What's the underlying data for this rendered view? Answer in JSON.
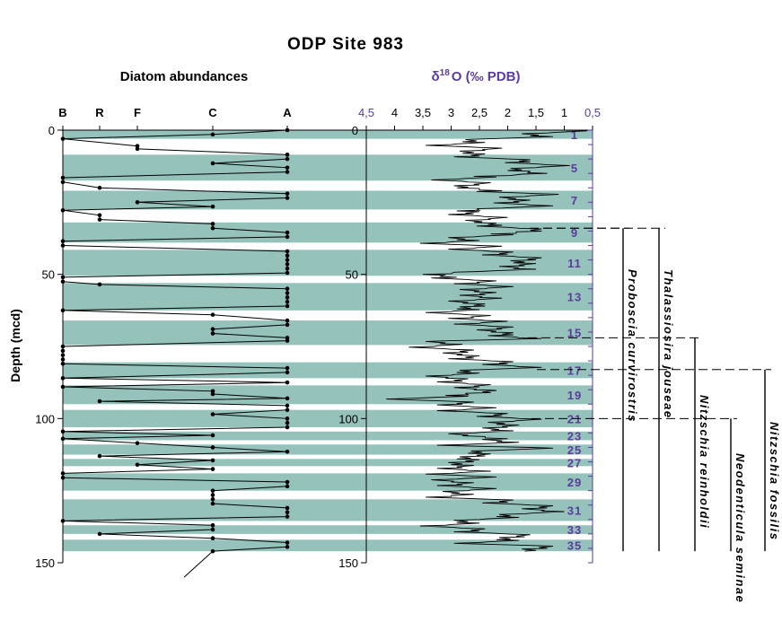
{
  "chart_data": {
    "type": "line",
    "title": "ODP Site 983",
    "ylabel": "Depth (mcd)",
    "ylim": [
      0,
      150
    ],
    "yticks": [
      0,
      50,
      100,
      150
    ],
    "colors": {
      "band": "#95c2bb",
      "purple": "#5b3b9e",
      "line": "#000000"
    },
    "panels": [
      {
        "name": "diatom",
        "subtitle": "Diatom abundances",
        "categories": [
          "B",
          "R",
          "F",
          "C",
          "A"
        ],
        "series": [
          {
            "points": [
              [
                0,
                "A"
              ],
              [
                1.5,
                "C"
              ],
              [
                3,
                "B"
              ],
              [
                5.5,
                "F"
              ],
              [
                6.5,
                "F"
              ],
              [
                8.5,
                "A"
              ],
              [
                10,
                "A"
              ],
              [
                11.5,
                "C"
              ],
              [
                13,
                "A"
              ],
              [
                14.5,
                "A"
              ],
              [
                16.5,
                "B"
              ],
              [
                18,
                "B"
              ],
              [
                20,
                "R"
              ],
              [
                22,
                "A"
              ],
              [
                23.5,
                "A"
              ],
              [
                25,
                "F"
              ],
              [
                26.5,
                "C"
              ],
              [
                27.8,
                "B"
              ],
              [
                29.5,
                "R"
              ],
              [
                31,
                "R"
              ],
              [
                32.5,
                "C"
              ],
              [
                34,
                "C"
              ],
              [
                35.5,
                "A"
              ],
              [
                37,
                "A"
              ],
              [
                38.5,
                "B"
              ],
              [
                40,
                "B"
              ],
              [
                42,
                "A"
              ],
              [
                43.5,
                "A"
              ],
              [
                45,
                "A"
              ],
              [
                46.5,
                "A"
              ],
              [
                48,
                "A"
              ],
              [
                49.5,
                "A"
              ],
              [
                51,
                "B"
              ],
              [
                52.5,
                "B"
              ],
              [
                53.5,
                "R"
              ],
              [
                55,
                "A"
              ],
              [
                56.5,
                "A"
              ],
              [
                58,
                "A"
              ],
              [
                59.5,
                "A"
              ],
              [
                61,
                "A"
              ],
              [
                62.5,
                "B"
              ],
              [
                64,
                "C"
              ],
              [
                66,
                "A"
              ],
              [
                67.5,
                "A"
              ],
              [
                69,
                "C"
              ],
              [
                70.5,
                "C"
              ],
              [
                72,
                "A"
              ],
              [
                73,
                "A"
              ],
              [
                75,
                "B"
              ],
              [
                76.5,
                "B"
              ],
              [
                78,
                "B"
              ],
              [
                79.5,
                "B"
              ],
              [
                81,
                "B"
              ],
              [
                82.5,
                "A"
              ],
              [
                84,
                "A"
              ],
              [
                86,
                "B"
              ],
              [
                87.5,
                "A"
              ],
              [
                89,
                "B"
              ],
              [
                90.5,
                "C"
              ],
              [
                91.5,
                "C"
              ],
              [
                93,
                "A"
              ],
              [
                94,
                "R"
              ],
              [
                95.5,
                "A"
              ],
              [
                97,
                "A"
              ],
              [
                98.5,
                "C"
              ],
              [
                100,
                "A"
              ],
              [
                101.5,
                "A"
              ],
              [
                103,
                "A"
              ],
              [
                104.5,
                "B"
              ],
              [
                105.8,
                "C"
              ],
              [
                107,
                "B"
              ],
              [
                108.5,
                "F"
              ],
              [
                110,
                "C"
              ],
              [
                111.5,
                "A"
              ],
              [
                113,
                "R"
              ],
              [
                114.5,
                "C"
              ],
              [
                116,
                "F"
              ],
              [
                117.5,
                "C"
              ],
              [
                119,
                "B"
              ],
              [
                120.5,
                "B"
              ],
              [
                122,
                "A"
              ],
              [
                123.5,
                "A"
              ],
              [
                125,
                "C"
              ],
              [
                126.5,
                "C"
              ],
              [
                128,
                "C"
              ],
              [
                129.5,
                "C"
              ],
              [
                131,
                "A"
              ],
              [
                132.5,
                "A"
              ],
              [
                134,
                "A"
              ],
              [
                135.5,
                "B"
              ],
              [
                137,
                "C"
              ],
              [
                138.5,
                "C"
              ],
              [
                140,
                "R"
              ],
              [
                141.5,
                "C"
              ],
              [
                143,
                "A"
              ],
              [
                144.5,
                "A"
              ],
              [
                146,
                "C"
              ]
            ]
          }
        ]
      },
      {
        "name": "d18o",
        "subtitle": "δ18O (‰ PDB)",
        "subtitle_main": "δ",
        "subtitle_sup": "18",
        "subtitle_rest": "O (‰ PDB)",
        "xlim": [
          4.5,
          0.5
        ],
        "xticks": [
          "4,5",
          "4",
          "3,5",
          "3",
          "2,5",
          "2",
          "1,5",
          "1",
          "0,5"
        ],
        "xtick_values": [
          4.5,
          4,
          3.5,
          3,
          2.5,
          2,
          1.5,
          1,
          0.5
        ],
        "series": [
          {
            "depth": [
              0,
              1,
              2,
              3,
              4,
              5,
              6,
              7,
              8,
              9,
              10,
              11,
              12,
              13,
              14,
              15,
              16,
              17,
              18,
              19,
              20,
              21,
              22,
              23,
              24,
              25,
              26,
              27,
              28,
              29,
              30,
              31,
              32,
              33,
              34,
              35,
              36,
              37,
              38,
              39,
              40,
              41,
              42,
              43,
              44,
              45,
              46,
              47,
              48,
              49,
              50,
              51,
              52,
              53,
              54,
              55,
              56,
              57,
              58,
              59,
              60,
              61,
              62,
              63,
              64,
              65,
              66,
              67,
              68,
              69,
              70,
              71,
              72,
              73,
              74,
              75,
              76,
              77,
              78,
              79,
              80,
              81,
              82,
              83,
              84,
              85,
              86,
              87,
              88,
              89,
              90,
              91,
              92,
              93,
              94,
              95,
              96,
              97,
              98,
              99,
              100,
              101,
              102,
              103,
              104,
              105,
              106,
              107,
              108,
              109,
              110,
              111,
              112,
              113,
              114,
              115,
              116,
              117,
              118,
              119,
              120,
              121,
              122,
              123,
              124,
              125,
              126,
              127,
              128,
              129,
              130,
              131,
              132,
              133,
              134,
              135,
              136,
              137,
              138,
              139,
              140,
              141,
              142,
              143,
              144,
              145,
              146
            ],
            "values": [
              1.0,
              1.3,
              1.6,
              2.3,
              2.8,
              3.0,
              2.5,
              2.4,
              2.8,
              2.5,
              2.0,
              1.6,
              1.3,
              1.5,
              2.0,
              1.3,
              2.6,
              2.9,
              2.7,
              2.5,
              2.9,
              2.1,
              1.5,
              1.7,
              2.0,
              1.8,
              1.6,
              2.1,
              2.9,
              2.6,
              2.4,
              2.3,
              2.6,
              2.1,
              1.8,
              1.4,
              2.3,
              2.6,
              2.9,
              3.1,
              2.5,
              2.6,
              2.3,
              2.0,
              1.8,
              1.5,
              1.9,
              1.7,
              1.9,
              2.5,
              3.5,
              2.9,
              2.6,
              2.5,
              2.3,
              2.4,
              2.6,
              2.4,
              2.5,
              2.6,
              2.8,
              2.4,
              2.9,
              3.0,
              2.7,
              2.6,
              2.4,
              2.5,
              2.3,
              2.1,
              2.3,
              1.9,
              1.8,
              3.0,
              3.2,
              3.3,
              3.0,
              2.7,
              2.9,
              2.6,
              2.3,
              2.0,
              1.8,
              2.4,
              2.9,
              3.0,
              3.1,
              2.8,
              2.7,
              2.5,
              2.6,
              2.3,
              3.1,
              3.7,
              3.0,
              2.8,
              2.6,
              2.8,
              2.4,
              2.1,
              1.8,
              1.9,
              2.2,
              2.0,
              2.3,
              2.6,
              2.8,
              2.0,
              2.2,
              2.8,
              1.6,
              2.2,
              2.7,
              2.4,
              2.9,
              2.6,
              3.0,
              2.8,
              2.7,
              3.0,
              2.6,
              2.9,
              3.0,
              2.8,
              2.6,
              2.7,
              3.0,
              3.0,
              2.3,
              2.0,
              1.6,
              1.3,
              1.4,
              1.7,
              2.2,
              2.5,
              2.9,
              3.1,
              2.8,
              2.5,
              2.0,
              1.7,
              2.2,
              2.5,
              1.6,
              1.3,
              1.7
            ]
          }
        ],
        "isotope_stages": [
          {
            "label": "1",
            "top": 0,
            "bottom": 3
          },
          {
            "label": "5",
            "top": 8.5,
            "bottom": 17.5
          },
          {
            "label": "7",
            "top": 21,
            "bottom": 27.5
          },
          {
            "label": "9",
            "top": 32,
            "bottom": 39
          },
          {
            "label": "11",
            "top": 41.5,
            "bottom": 50.5
          },
          {
            "label": "13",
            "top": 53,
            "bottom": 62.5
          },
          {
            "label": "15",
            "top": 66,
            "bottom": 74.5
          },
          {
            "label": "17",
            "top": 80.5,
            "bottom": 86
          },
          {
            "label": "19",
            "top": 88.5,
            "bottom": 95
          },
          {
            "label": "21",
            "top": 97,
            "bottom": 103
          },
          {
            "label": "23",
            "top": 104.5,
            "bottom": 107.5
          },
          {
            "label": "25",
            "top": 109,
            "bottom": 112.5
          },
          {
            "label": "27",
            "top": 114,
            "bottom": 116.5
          },
          {
            "label": "29",
            "top": 119,
            "bottom": 125
          },
          {
            "label": "31",
            "top": 128,
            "bottom": 135.5
          },
          {
            "label": "33",
            "top": 137,
            "bottom": 140
          },
          {
            "label": "35",
            "top": 142,
            "bottom": 146
          }
        ]
      }
    ],
    "species_ranges": [
      {
        "name": "Proboscia curvirostris",
        "top": 34,
        "bottom": 146
      },
      {
        "name": "Thalassiosira jouseae",
        "top": 34,
        "bottom": 146
      },
      {
        "name": "Nitzschia reinholdii",
        "top": 72,
        "bottom": 146
      },
      {
        "name": "Neodenticula seminae",
        "top": 100,
        "bottom": 146
      },
      {
        "name": "Nitzschia fossilis",
        "top": 83,
        "bottom": 146
      }
    ]
  }
}
